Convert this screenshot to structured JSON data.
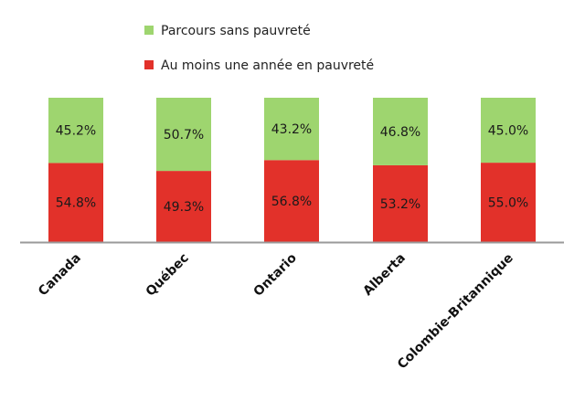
{
  "chart_data": {
    "type": "bar",
    "stacked": true,
    "percent_stacked": true,
    "categories": [
      "Canada",
      "Québec",
      "Ontario",
      "Alberta",
      "Colombie-Britannique"
    ],
    "series": [
      {
        "name": "Au moins une année en pauvreté",
        "color": "#e2312a",
        "values": [
          54.8,
          49.3,
          56.8,
          53.2,
          55.0
        ],
        "labels": [
          "54.8%",
          "49.3%",
          "56.8%",
          "53.2%",
          "55.0%"
        ]
      },
      {
        "name": "Parcours sans pauvreté",
        "color": "#9ed56f",
        "values": [
          45.2,
          50.7,
          43.2,
          46.8,
          45.0
        ],
        "labels": [
          "45.2%",
          "50.7%",
          "43.2%",
          "46.8%",
          "45.0%"
        ]
      }
    ],
    "ylim": [
      0,
      100
    ],
    "grid": false,
    "legend": {
      "position": "top",
      "order": [
        "Parcours sans pauvreté",
        "Au moins une année en pauvreté"
      ]
    },
    "axis_color": "#9a9a9a"
  }
}
